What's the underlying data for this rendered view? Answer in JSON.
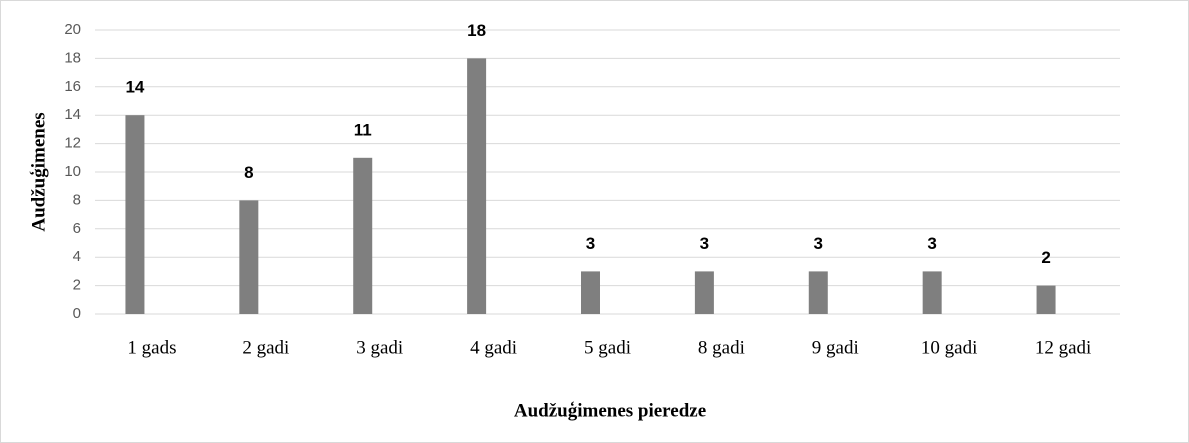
{
  "chart_data": {
    "type": "bar",
    "x_label": "Audžuģimenes pieredze",
    "y_label": "Audžuģimenes",
    "categories": [
      "1 gads",
      "2 gadi",
      "3 gadi",
      "4 gadi",
      "5 gadi",
      "8 gadi",
      "9 gadi",
      "10 gadi",
      "12 gadi"
    ],
    "values": [
      14,
      8,
      11,
      18,
      3,
      3,
      3,
      3,
      2
    ],
    "color": "#7f7f7f",
    "ylim": [
      0,
      20
    ],
    "yticks": [
      0,
      2,
      4,
      6,
      8,
      10,
      12,
      14,
      16,
      18,
      20
    ],
    "grid": true
  }
}
